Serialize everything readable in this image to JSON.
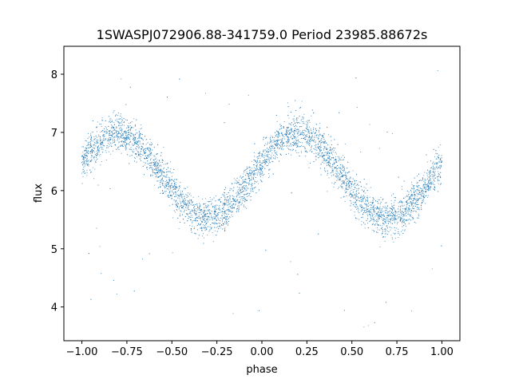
{
  "chart_data": {
    "type": "scatter",
    "title": "1SWASPJ072906.88-341759.0 Period 23985.88672s",
    "xlabel": "phase",
    "ylabel": "flux",
    "xlim": [
      -1.1,
      1.1
    ],
    "ylim": [
      3.42,
      8.48
    ],
    "xticks": [
      -1.0,
      -0.75,
      -0.5,
      -0.25,
      0.0,
      0.25,
      0.5,
      0.75,
      1.0
    ],
    "xtick_labels": [
      "−1.00",
      "−0.75",
      "−0.50",
      "−0.25",
      "0.00",
      "0.25",
      "0.50",
      "0.75",
      "1.00"
    ],
    "yticks": [
      4,
      5,
      6,
      7,
      8
    ],
    "ytick_labels": [
      "4",
      "5",
      "6",
      "7",
      "8"
    ],
    "grid": false,
    "legend": "none",
    "point_color": "#1f77b4",
    "series": [
      {
        "model": "approx. sinusoid, two cycles over the phase range",
        "phase_of_maxima": [
          -0.8,
          0.2
        ],
        "phase_of_minima": [
          -0.3,
          0.7
        ],
        "max_flux": 6.98,
        "min_flux": 5.52,
        "x_range": [
          -1.0,
          1.0
        ],
        "n_points_approx": 6000,
        "noise_sd": 0.16,
        "outlier_range": [
          3.6,
          8.25
        ]
      }
    ]
  }
}
